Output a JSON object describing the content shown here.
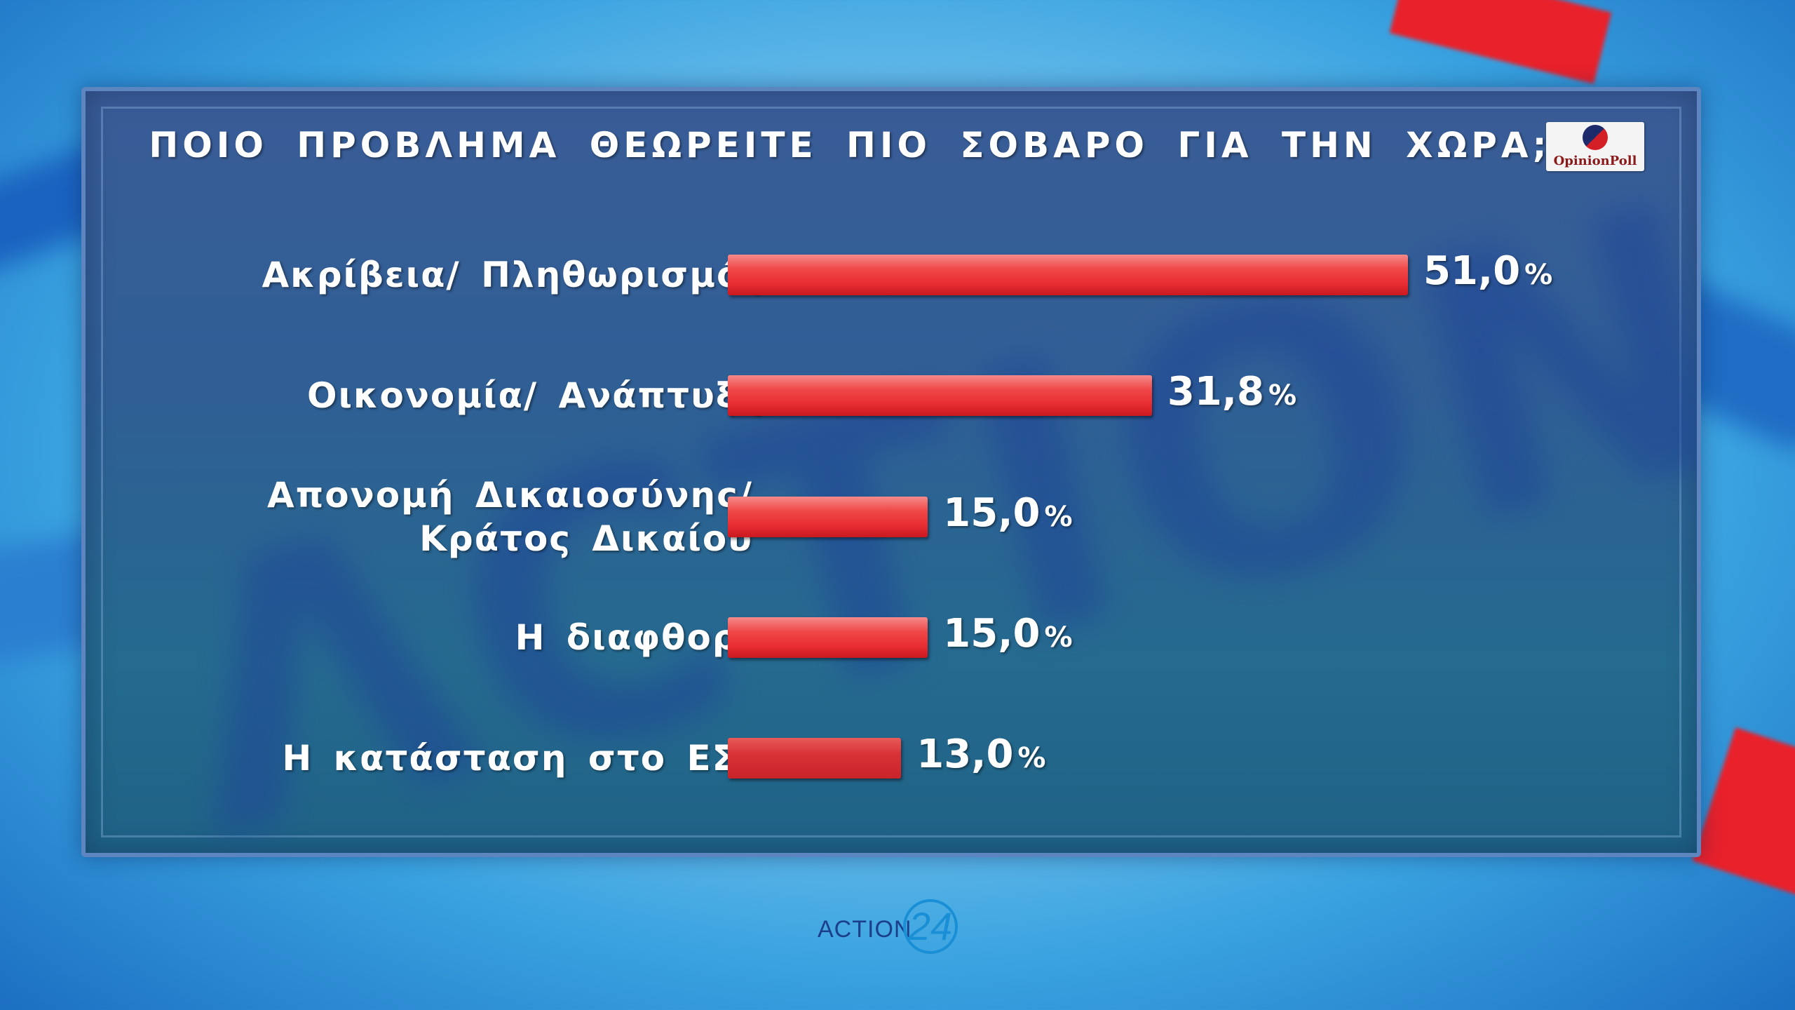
{
  "title": "ΠΟΙΟ ΠΡΟΒΛΗΜΑ ΘΕΩΡΕΙΤΕ ΠΙΟ ΣΟΒΑΡΟ ΓΙΑ ΤΗΝ ΧΩΡΑ;",
  "logo_text": "OpinionPoll",
  "brand": {
    "text": "ACTION",
    "number": "24"
  },
  "colors": {
    "bar": "#e8333a",
    "panel": "#2f5f95",
    "text": "#ffffff"
  },
  "chart_data": {
    "type": "bar",
    "orientation": "horizontal",
    "title": "ΠΟΙΟ ΠΡΟΒΛΗΜΑ ΘΕΩΡΕΙΤΕ ΠΙΟ ΣΟΒΑΡΟ ΓΙΑ ΤΗΝ ΧΩΡΑ;",
    "categories": [
      [
        "Ακρίβεια/ Πληθωρισμός"
      ],
      [
        "Οικονομία/ Ανάπτυξη"
      ],
      [
        "Απονομή Δικαιοσύνης/",
        "Κράτος Δικαίου"
      ],
      [
        "Η διαφθορά"
      ],
      [
        "Η κατάσταση στο ΕΣΥ"
      ]
    ],
    "values": [
      51.0,
      31.8,
      15.0,
      15.0,
      13.0
    ],
    "value_labels": [
      "51,0",
      "31,8",
      "15,0",
      "15,0",
      "13,0"
    ],
    "unit": "%",
    "xlim": [
      0,
      51.0
    ]
  }
}
